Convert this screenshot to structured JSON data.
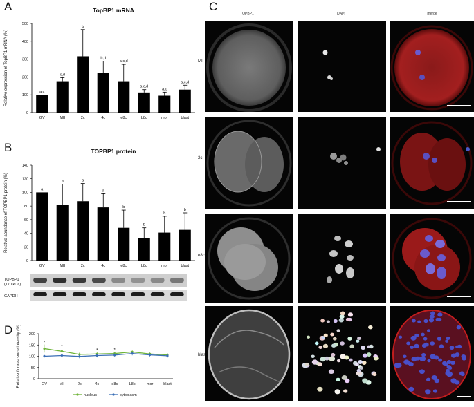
{
  "panels": {
    "A": {
      "letter": "A",
      "chart_data": {
        "type": "bar",
        "title": "TopBP1 mRNA",
        "ylabel": "Relative expression of TopBP1 mRNA (%)",
        "xlabel": "",
        "ylim": [
          0,
          500
        ],
        "yticks": [
          "0",
          "100",
          "200",
          "300",
          "400",
          "500"
        ],
        "categories": [
          "GV",
          "MII",
          "2c",
          "4c",
          "e8c",
          "L8c",
          "mor",
          "blast"
        ],
        "values": [
          100,
          176,
          316,
          221,
          176,
          113,
          95,
          129
        ],
        "errors": [
          0,
          20,
          150,
          68,
          95,
          16,
          20,
          25
        ],
        "letters": [
          "a,c",
          "c,d",
          "b",
          "b,d",
          "a,c,d",
          "a,c,d",
          "a,c",
          "a,c,d"
        ]
      }
    },
    "B": {
      "letter": "B",
      "chart_data": {
        "type": "bar",
        "title": "TOPBP1 protein",
        "ylabel": "Relative abundance of TOPBP1 protein (%)",
        "xlabel": "",
        "ylim": [
          0,
          140
        ],
        "yticks": [
          "0",
          "20",
          "40",
          "60",
          "80",
          "100",
          "120",
          "140"
        ],
        "categories": [
          "GV",
          "MII",
          "2c",
          "4c",
          "e8c",
          "L8c",
          "mor",
          "blast"
        ],
        "values": [
          100,
          82,
          87,
          78,
          48,
          33,
          41,
          45
        ],
        "errors": [
          0,
          30,
          26,
          20,
          26,
          15,
          24,
          25
        ],
        "letters": [
          "a",
          "a",
          "a",
          "a",
          "b",
          "b",
          "b",
          "b"
        ]
      },
      "blot": {
        "topbp1_label": "TOPBP1",
        "topbp1_size": "(170 kDa)",
        "gapdh_label": "GAPDH",
        "topbp1_intensity": [
          0.75,
          0.85,
          0.8,
          0.7,
          0.35,
          0.3,
          0.35,
          0.45
        ],
        "gapdh_intensity": [
          0.9,
          0.9,
          0.9,
          0.9,
          0.9,
          0.9,
          0.9,
          0.9
        ]
      }
    },
    "C": {
      "letter": "C",
      "columns": [
        "TOPBP1",
        "DAPI",
        "merge"
      ],
      "rows": [
        "MII",
        "2c",
        "e8c",
        "blast"
      ]
    },
    "D": {
      "letter": "D",
      "chart_data": {
        "type": "line",
        "ylabel": "Relative fluorescence intensity (%)",
        "xlabel": "",
        "ylim": [
          0,
          200
        ],
        "yticks": [
          "0",
          "50",
          "100",
          "150",
          "200"
        ],
        "categories": [
          "GV",
          "MII",
          "2c",
          "4c",
          "e8c",
          "L8c",
          "mor",
          "blast"
        ],
        "series": [
          {
            "name": "nucleus",
            "color": "#6fb43a",
            "values": [
              134,
              122,
              108,
              110,
              112,
              119,
              110,
              106
            ],
            "errors": [
              18,
              14,
              8,
              8,
              8,
              8,
              8,
              8
            ]
          },
          {
            "name": "cytoplasm",
            "color": "#3b6fb6",
            "values": [
              100,
              103,
              99,
              103,
              105,
              112,
              106,
              102
            ],
            "errors": [
              6,
              12,
              8,
              8,
              8,
              8,
              8,
              8
            ]
          }
        ],
        "stars": [
          "*",
          "*",
          "",
          "*",
          "*",
          "",
          "",
          ""
        ]
      }
    }
  }
}
